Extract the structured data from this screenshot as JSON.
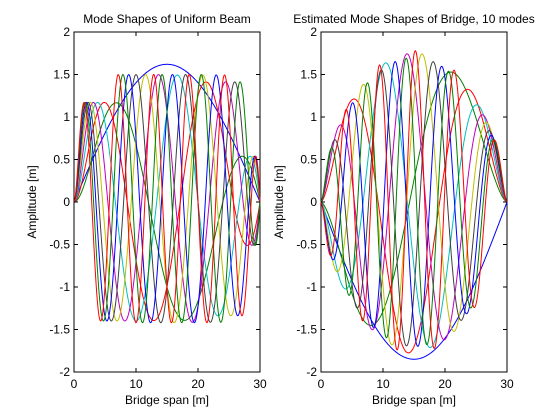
{
  "chart_data": [
    {
      "type": "line",
      "title": "Mode Shapes of Uniform Beam",
      "xlabel": "Bridge span [m]",
      "ylabel": "Amplitude [m]",
      "xlim": [
        0,
        30
      ],
      "ylim": [
        -2,
        2
      ],
      "xticks": [
        "0",
        "10",
        "20",
        "30"
      ],
      "yticks": [
        "-2",
        "-1.5",
        "-1",
        "-0.5",
        "0",
        "0.5",
        "1",
        "1.5",
        "2"
      ],
      "grid": false,
      "x_range": [
        0,
        30
      ],
      "n_series": 10,
      "series": [
        {
          "mode": 1,
          "color": "#0000ff",
          "kind": "half-sine",
          "peak_x": 15,
          "peak_y": 1.62,
          "min_y": 0
        },
        {
          "mode": 2,
          "color": "#008000",
          "kind": "oscillating",
          "max_y": 1.5,
          "min_y": -1.5
        },
        {
          "mode": 3,
          "color": "#ff0000",
          "kind": "oscillating",
          "max_y": 1.5,
          "min_y": -1.42
        },
        {
          "mode": 4,
          "color": "#00bfbf",
          "kind": "oscillating",
          "max_y": 1.5,
          "min_y": -1.42
        },
        {
          "mode": 5,
          "color": "#bf00bf",
          "kind": "oscillating",
          "max_y": 1.5,
          "min_y": -1.42
        },
        {
          "mode": 6,
          "color": "#bfbf00",
          "kind": "oscillating",
          "max_y": 1.5,
          "min_y": -1.42
        },
        {
          "mode": 7,
          "color": "#404040",
          "kind": "oscillating",
          "max_y": 1.5,
          "min_y": -1.42
        },
        {
          "mode": 8,
          "color": "#0000ff",
          "kind": "oscillating",
          "max_y": 1.5,
          "min_y": -1.42
        },
        {
          "mode": 9,
          "color": "#008000",
          "kind": "oscillating",
          "max_y": 1.5,
          "min_y": -1.42
        },
        {
          "mode": 10,
          "color": "#ff0000",
          "kind": "oscillating",
          "max_y": 1.5,
          "min_y": -1.42
        }
      ]
    },
    {
      "type": "line",
      "title": "Estimated Mode Shapes of Bridge, 10 modes",
      "xlabel": "Bridge span [m]",
      "ylabel": "Amplitude [m]",
      "xlim": [
        0,
        30
      ],
      "ylim": [
        -2,
        2
      ],
      "xticks": [
        "0",
        "10",
        "20",
        "30"
      ],
      "yticks": [
        "-2",
        "-1.5",
        "-1",
        "-0.5",
        "0",
        "0.5",
        "1",
        "1.5",
        "2"
      ],
      "grid": false,
      "x_range": [
        0,
        30
      ],
      "n_series": 10,
      "series": [
        {
          "mode": 1,
          "color": "#0000ff",
          "kind": "half-sine",
          "peak_x": 15,
          "peak_y": -1.85
        },
        {
          "mode": 2,
          "color": "#008000",
          "max_abs_y": 1.75
        },
        {
          "mode": 3,
          "color": "#ff0000",
          "max_abs_y": 1.78
        },
        {
          "mode": 4,
          "color": "#00bfbf",
          "max_abs_y": 1.75
        },
        {
          "mode": 5,
          "color": "#bf00bf",
          "max_abs_y": 1.75
        },
        {
          "mode": 6,
          "color": "#bfbf00",
          "max_abs_y": 1.75
        },
        {
          "mode": 7,
          "color": "#404040",
          "max_abs_y": 1.7
        },
        {
          "mode": 8,
          "color": "#0000ff",
          "max_abs_y": 1.7
        },
        {
          "mode": 9,
          "color": "#008000",
          "max_abs_y": 1.7
        },
        {
          "mode": 10,
          "color": "#ff0000",
          "max_abs_y": 1.78
        }
      ]
    }
  ]
}
